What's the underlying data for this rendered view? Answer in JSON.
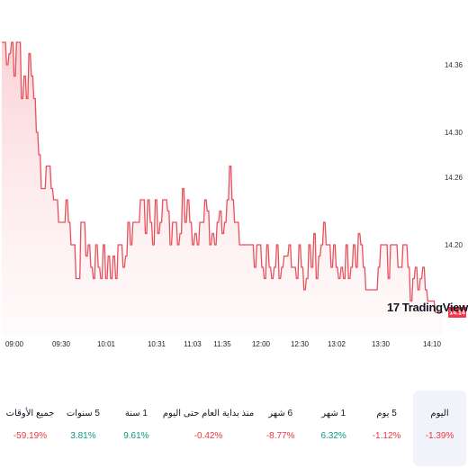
{
  "chart_data": {
    "type": "area",
    "y_ticks": [
      "14.36",
      "14.30",
      "14.26",
      "14.20",
      "14.14"
    ],
    "x_ticks": [
      "09:00",
      "09:30",
      "10:01",
      "10:31",
      "11:03",
      "11:35",
      "12:00",
      "12:30",
      "13:02",
      "13:30",
      "14:10"
    ],
    "ylim": [
      14.12,
      14.4
    ],
    "last_value": "14.14",
    "line_color": "#e8505b",
    "fill_color": "#fbd7da",
    "values": [
      14.38,
      14.38,
      14.36,
      14.37,
      14.38,
      14.35,
      14.38,
      14.38,
      14.33,
      14.35,
      14.33,
      14.37,
      14.35,
      14.33,
      14.3,
      14.28,
      14.25,
      14.25,
      14.27,
      14.27,
      14.25,
      14.24,
      14.24,
      14.22,
      14.22,
      14.22,
      14.24,
      14.22,
      14.2,
      14.2,
      14.17,
      14.17,
      14.22,
      14.22,
      14.19,
      14.2,
      14.18,
      14.17,
      14.2,
      14.18,
      14.17,
      14.2,
      14.17,
      14.19,
      14.17,
      14.19,
      14.17,
      14.2,
      14.2,
      14.18,
      14.19,
      14.22,
      14.2,
      14.22,
      14.22,
      14.22,
      14.24,
      14.24,
      14.21,
      14.24,
      14.22,
      14.2,
      14.24,
      14.21,
      14.22,
      14.24,
      14.24,
      14.23,
      14.2,
      14.22,
      14.22,
      14.2,
      14.21,
      14.25,
      14.22,
      14.24,
      14.22,
      14.2,
      14.21,
      14.2,
      14.22,
      14.22,
      14.24,
      14.23,
      14.2,
      14.21,
      14.2,
      14.22,
      14.23,
      14.21,
      14.22,
      14.24,
      14.27,
      14.24,
      14.22,
      14.22,
      14.2,
      14.2,
      14.2,
      14.2,
      14.2,
      14.2,
      14.18,
      14.2,
      14.2,
      14.18,
      14.17,
      14.2,
      14.18,
      14.17,
      14.18,
      14.2,
      14.17,
      14.18,
      14.19,
      14.19,
      14.2,
      14.18,
      14.18,
      14.17,
      14.2,
      14.18,
      14.16,
      14.17,
      14.2,
      14.18,
      14.21,
      14.17,
      14.19,
      14.2,
      14.22,
      14.2,
      14.2,
      14.18,
      14.2,
      14.18,
      14.17,
      14.18,
      14.17,
      14.2,
      14.17,
      14.18,
      14.2,
      14.18,
      14.21,
      14.2,
      14.18,
      14.16,
      14.16,
      14.16,
      14.16,
      14.16,
      14.18,
      14.2,
      14.2,
      14.2,
      14.17,
      14.2,
      14.2,
      14.2,
      14.18,
      14.18,
      14.2,
      14.2,
      14.18,
      14.15,
      14.17,
      14.18,
      14.16,
      14.17,
      14.18,
      14.16,
      14.15,
      14.15,
      14.15,
      14.14,
      14.14,
      14.14,
      14.14
    ]
  },
  "brand": {
    "logo_mark": "17",
    "logo_text": "TradingView"
  },
  "periods": [
    {
      "label": "اليوم",
      "value": "-1.39%",
      "sign": "neg",
      "active": true
    },
    {
      "label": "5 يوم",
      "value": "-1.12%",
      "sign": "neg",
      "active": false
    },
    {
      "label": "1 شهر",
      "value": "6.32%",
      "sign": "pos",
      "active": false
    },
    {
      "label": "6 شهر",
      "value": "-8.77%",
      "sign": "neg",
      "active": false
    },
    {
      "label": "منذ بداية العام حتى اليوم",
      "value": "-0.42%",
      "sign": "neg",
      "active": false
    },
    {
      "label": "1 سنة",
      "value": "9.61%",
      "sign": "pos",
      "active": false
    },
    {
      "label": "5 سنوات",
      "value": "3.81%",
      "sign": "pos",
      "active": false
    },
    {
      "label": "جميع الأوقات",
      "value": "-59.19%",
      "sign": "neg",
      "active": false
    }
  ]
}
